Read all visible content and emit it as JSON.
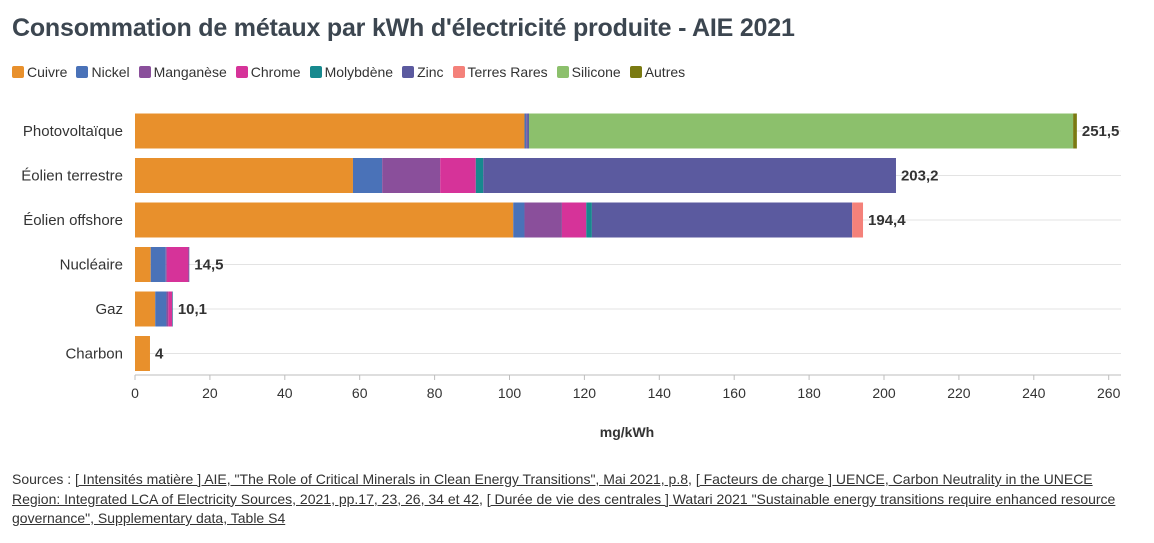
{
  "title": "Consommation de métaux par kWh d'électricité produite - AIE 2021",
  "legend": [
    {
      "label": "Cuivre",
      "color": "#e8902c"
    },
    {
      "label": "Nickel",
      "color": "#4a72b8"
    },
    {
      "label": "Manganèse",
      "color": "#8a4f9b"
    },
    {
      "label": "Chrome",
      "color": "#d63399"
    },
    {
      "label": "Molybdène",
      "color": "#17898e"
    },
    {
      "label": "Zinc",
      "color": "#5b5a9f"
    },
    {
      "label": "Terres Rares",
      "color": "#f4817a"
    },
    {
      "label": "Silicone",
      "color": "#8cc06c"
    },
    {
      "label": "Autres",
      "color": "#7a7a12"
    }
  ],
  "chart_data": {
    "type": "bar",
    "orientation": "horizontal",
    "stacked": true,
    "categories": [
      "Photovoltaïque",
      "Éolien terrestre",
      "Éolien offshore",
      "Nucléaire",
      "Gaz",
      "Charbon"
    ],
    "totals": [
      "251,5",
      "203,2",
      "194,4",
      "14,5",
      "10,1",
      "4"
    ],
    "series": [
      {
        "name": "Cuivre",
        "color": "#e8902c",
        "values": [
          104,
          58.2,
          101,
          4.2,
          5.4,
          4
        ]
      },
      {
        "name": "Nickel",
        "color": "#4a72b8",
        "values": [
          0.5,
          7.8,
          3,
          4,
          3,
          0
        ]
      },
      {
        "name": "Manganèse",
        "color": "#8a4f9b",
        "values": [
          0.2,
          15.5,
          10,
          0.3,
          0.5,
          0
        ]
      },
      {
        "name": "Chrome",
        "color": "#d63399",
        "values": [
          0,
          9.5,
          6.5,
          5.8,
          1,
          0
        ]
      },
      {
        "name": "Molybdène",
        "color": "#17898e",
        "values": [
          0,
          2,
          1.5,
          0,
          0.1,
          0
        ]
      },
      {
        "name": "Zinc",
        "color": "#5b5a9f",
        "values": [
          0.5,
          110.2,
          69.5,
          0.2,
          0.1,
          0
        ]
      },
      {
        "name": "Terres Rares",
        "color": "#f4817a",
        "values": [
          0,
          0,
          2.9,
          0,
          0,
          0
        ]
      },
      {
        "name": "Silicone",
        "color": "#8cc06c",
        "values": [
          145.3,
          0,
          0,
          0,
          0,
          0
        ]
      },
      {
        "name": "Autres",
        "color": "#7a7a12",
        "values": [
          1,
          0,
          0,
          0,
          0,
          0
        ]
      }
    ],
    "xticks": [
      0,
      20,
      40,
      60,
      80,
      100,
      120,
      140,
      160,
      180,
      200,
      220,
      240,
      260
    ],
    "xlim": [
      0,
      264
    ],
    "xlabel": "mg/kWh",
    "grid": true
  },
  "sources": {
    "prefix": "Sources : ",
    "link1": "[ Intensités matière ] AIE, \"The Role of Critical Minerals in Clean Energy Transitions\", Mai 2021, p.8",
    "sep1": ", ",
    "link2": "[ Facteurs de charge ] UENCE, Carbon Neutrality in the UNECE Region: Integrated LCA of Electricity Sources, 2021, pp.17, 23, 26, 34 et 42",
    "sep2": ", ",
    "link3": "[ Durée de vie des centrales ] Watari 2021 \"Sustainable energy transitions require enhanced resource governance\", Supplementary data, Table S4"
  }
}
